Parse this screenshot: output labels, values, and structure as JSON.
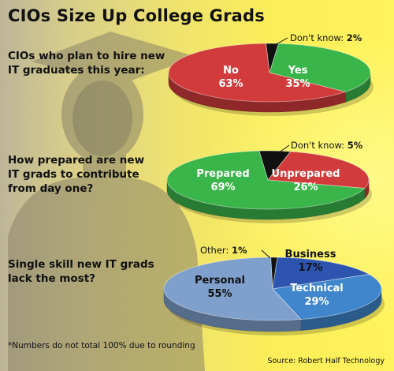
{
  "title": "CIOs Size Up College Grads",
  "footnote": "*Numbers do not total 100% due to rounding",
  "source": "Source: Robert Half Technology",
  "colors": {
    "red": "#d23b3b",
    "green": "#3ab54a",
    "black": "#111111",
    "blue_dark": "#2d55b0",
    "blue_mid": "#3f86cc",
    "blue_light": "#7f9fcc"
  },
  "chart_data": [
    {
      "type": "pie",
      "question": [
        "CIOs who plan to hire new",
        "IT graduates this year:"
      ],
      "slices": [
        {
          "label": "Don't know",
          "value": 2,
          "display": "2%",
          "color": "#111111",
          "callout": true
        },
        {
          "label": "Yes",
          "value": 35,
          "display": "35%",
          "color": "#3ab54a"
        },
        {
          "label": "No",
          "value": 63,
          "display": "63%",
          "color": "#d23b3b"
        }
      ]
    },
    {
      "type": "pie",
      "question": [
        "How prepared are new",
        "IT grads to contribute",
        "from day one?"
      ],
      "slices": [
        {
          "label": "Don't know",
          "value": 5,
          "display": "5%",
          "color": "#111111",
          "callout": true
        },
        {
          "label": "Unprepared",
          "value": 26,
          "display": "26%",
          "color": "#d23b3b"
        },
        {
          "label": "Prepared",
          "value": 69,
          "display": "69%",
          "color": "#3ab54a"
        }
      ]
    },
    {
      "type": "pie",
      "question": [
        "Single skill new IT grads",
        "lack the most?"
      ],
      "slices": [
        {
          "label": "Other",
          "value": 1,
          "display": "1%",
          "color": "#111111",
          "callout": true
        },
        {
          "label": "Business",
          "value": 17,
          "display": "17%",
          "color": "#2d55b0"
        },
        {
          "label": "Technical",
          "value": 29,
          "display": "29%",
          "color": "#3f86cc"
        },
        {
          "label": "Personal",
          "value": 55,
          "display": "55%",
          "color": "#7f9fcc"
        }
      ]
    }
  ]
}
